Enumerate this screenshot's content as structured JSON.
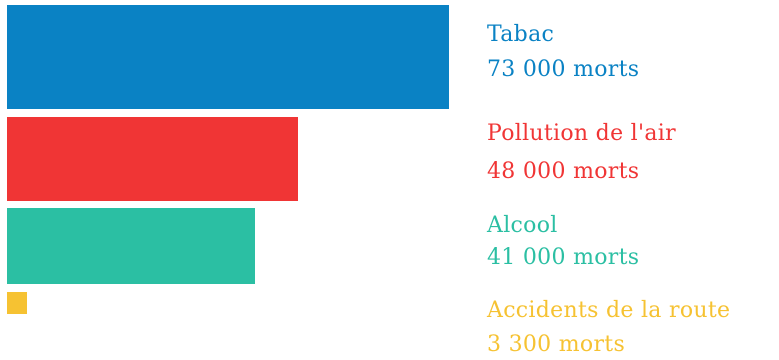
{
  "chart_data": {
    "type": "bar",
    "orientation": "horizontal",
    "categories": [
      "Tabac",
      "Pollution de l'air",
      "Alcool",
      "Accidents de la route"
    ],
    "values": [
      73000,
      48000,
      41000,
      3300
    ],
    "value_labels": [
      "73 000 morts",
      "48 000 morts",
      "41 000 morts",
      "3 300 morts"
    ],
    "colors": [
      "#0a82c4",
      "#f03535",
      "#2bbfa3",
      "#f6c232"
    ],
    "unit": "morts"
  }
}
